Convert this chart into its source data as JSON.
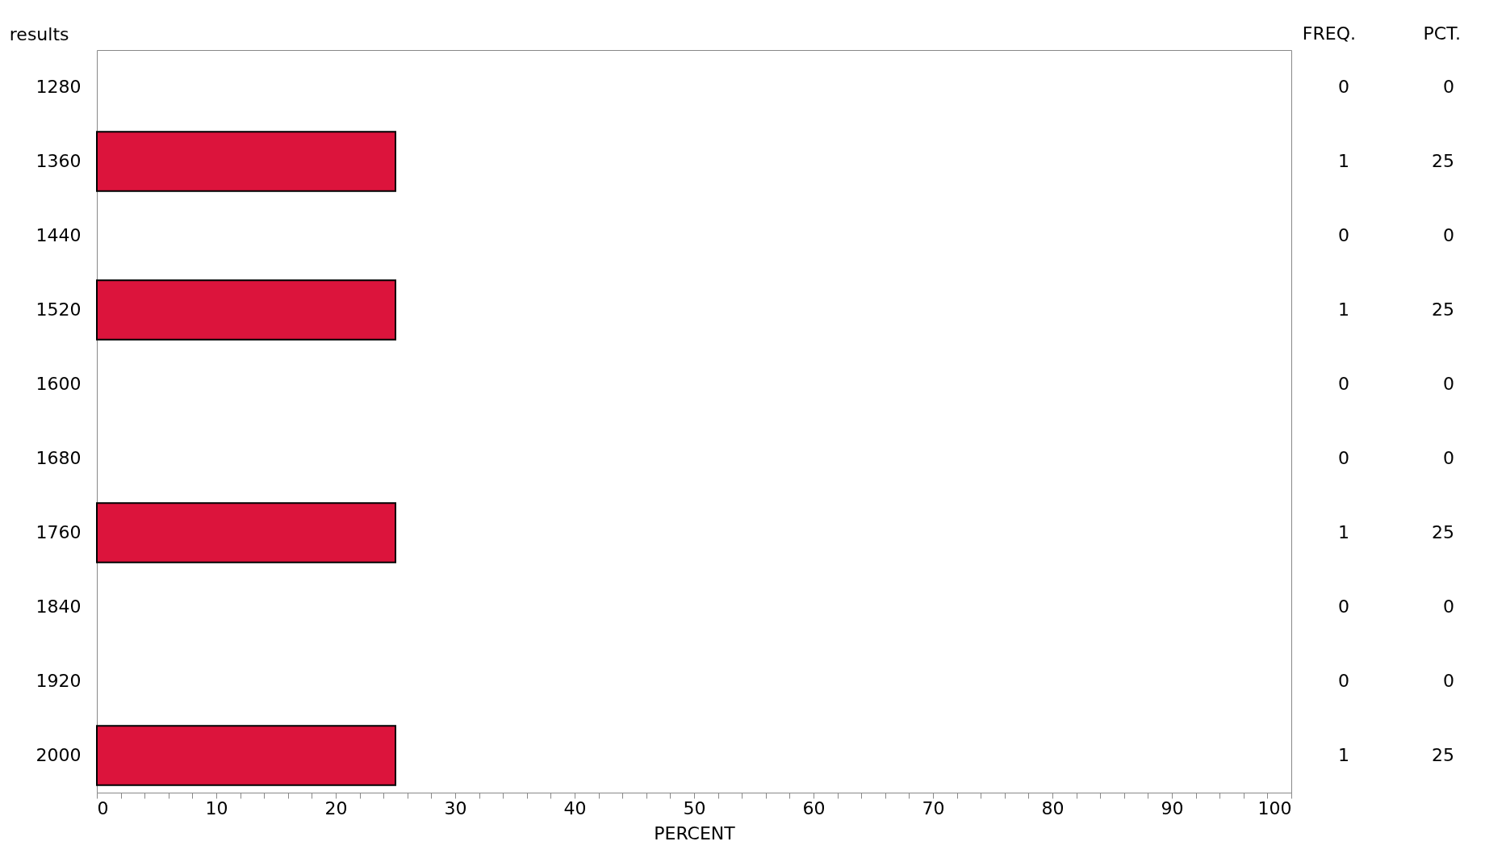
{
  "chart_data": {
    "type": "bar",
    "orientation": "horizontal",
    "ylabel": "results",
    "xlabel": "PERCENT",
    "categories": [
      "1280",
      "1360",
      "1440",
      "1520",
      "1600",
      "1680",
      "1760",
      "1840",
      "1920",
      "2000"
    ],
    "series": [
      {
        "color": "#dc143c",
        "values": [
          0,
          25,
          0,
          25,
          0,
          0,
          25,
          0,
          0,
          25
        ]
      }
    ],
    "value_labels": [
      "0",
      "25",
      "0",
      "25",
      "0",
      "0",
      "25",
      "0",
      "0",
      "25"
    ],
    "annotations": [
      "FREQ.",
      "PCT.",
      "0",
      "1",
      "0",
      "1",
      "0",
      "0",
      "1",
      "0",
      "0",
      "1"
    ],
    "xlim": [
      0,
      100
    ],
    "xticks": [
      0,
      {
        "value": 2,
        "label": null
      },
      {
        "value": 4,
        "label": null
      },
      {
        "value": 6,
        "label": null
      },
      {
        "value": 8,
        "label": null
      },
      10,
      {
        "value": 12,
        "label": null
      },
      {
        "value": 14,
        "label": null
      },
      {
        "value": 16,
        "label": null
      },
      {
        "value": 18,
        "label": null
      },
      20,
      {
        "value": 22,
        "label": null
      },
      {
        "value": 24,
        "label": null
      },
      {
        "value": 26,
        "label": null
      },
      {
        "value": 28,
        "label": null
      },
      30,
      {
        "value": 32,
        "label": null
      },
      {
        "value": 34,
        "label": null
      },
      {
        "value": 36,
        "label": null
      },
      {
        "value": 38,
        "label": null
      },
      40,
      {
        "value": 42,
        "label": null
      },
      {
        "value": 44,
        "label": null
      },
      {
        "value": 46,
        "label": null
      },
      {
        "value": 48,
        "label": null
      },
      50,
      {
        "value": 52,
        "label": null
      },
      {
        "value": 54,
        "label": null
      },
      {
        "value": 56,
        "label": null
      },
      {
        "value": 58,
        "label": null
      },
      60,
      {
        "value": 62,
        "label": null
      },
      {
        "value": 64,
        "label": null
      },
      {
        "value": 66,
        "label": null
      },
      {
        "value": 68,
        "label": null
      },
      70,
      {
        "value": 72,
        "label": null
      },
      {
        "value": 74,
        "label": null
      },
      {
        "value": 76,
        "label": null
      },
      {
        "value": 78,
        "label": null
      },
      80,
      {
        "value": 82,
        "label": null
      },
      {
        "value": 84,
        "label": null
      },
      {
        "value": 86,
        "label": null
      },
      {
        "value": 88,
        "label": null
      },
      90,
      {
        "value": 92,
        "label": null
      },
      {
        "value": 94,
        "label": null
      },
      {
        "value": 96,
        "label": null
      },
      {
        "value": 98,
        "label": null
      },
      100
    ],
    "grid": false,
    "legend": false
  }
}
